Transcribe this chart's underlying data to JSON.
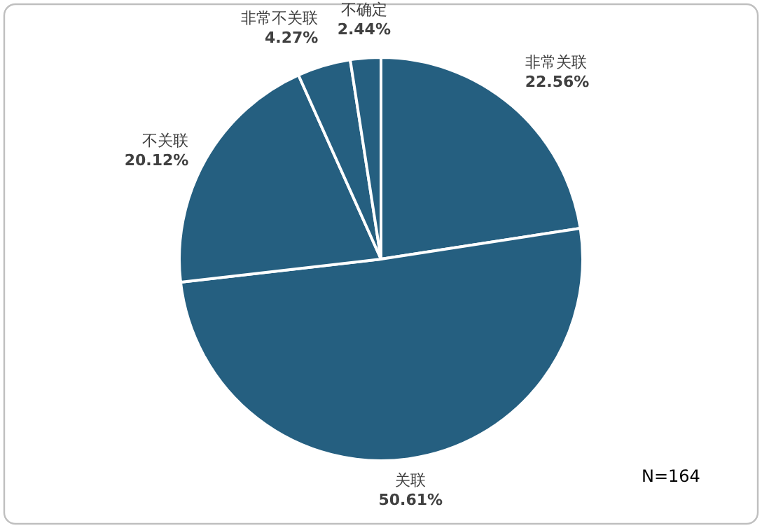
{
  "chart_data": {
    "type": "pie",
    "categories": [
      "非常关联",
      "关联",
      "不关联",
      "非常不关联",
      "不确定"
    ],
    "values": [
      22.56,
      50.61,
      20.12,
      4.27,
      2.44
    ],
    "colors": [
      "#255f80",
      "#255f80",
      "#255f80",
      "#255f80",
      "#255f80"
    ],
    "value_labels": [
      "22.56%",
      "50.61%",
      "20.12%",
      "4.27%",
      "2.44%"
    ],
    "annotations": [
      "N=164"
    ]
  }
}
